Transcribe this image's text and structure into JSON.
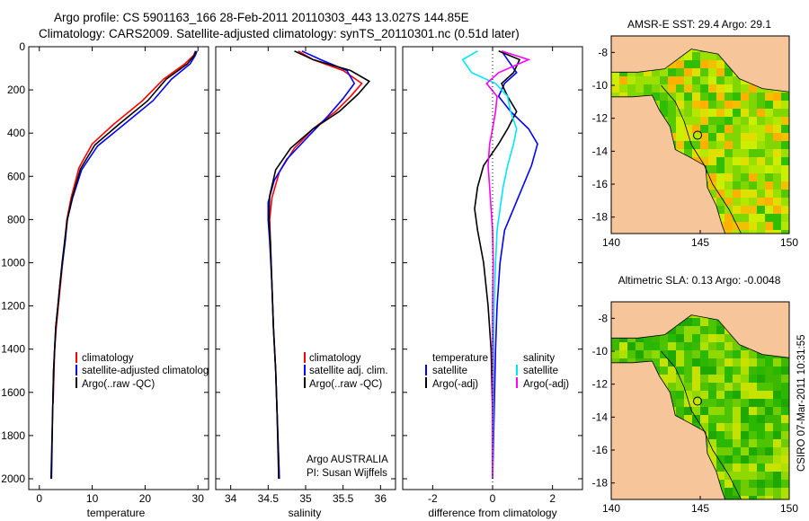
{
  "header": {
    "line1": "Argo profile: CS 5901163_166 28-Feb-2011 20110303_443 13.027S 144.85E",
    "line2": "Climatology: CARS2009. Satellite-adjusted climatology: synTS_20110301.nc (0.51d later)"
  },
  "footer": {
    "org": "Argo AUSTRALIA",
    "pi": "PI: Susan Wijffels",
    "stamp": "CSIRO 07-Mar-2011 10:31:55"
  },
  "colors": {
    "climatology": "#ff0000",
    "satellite": "#0000ff",
    "argo": "#000000",
    "sal_satellite": "#00e5ff",
    "sal_argo": "#ff00ff",
    "land": "#f6c59a",
    "sea_grid": "#000000"
  },
  "chart_data": [
    {
      "type": "line",
      "title": "",
      "xlabel": "temperature",
      "ylabel": "",
      "xlim": [
        -2,
        32
      ],
      "ylim": [
        2050,
        0
      ],
      "xticks": [
        0,
        10,
        20,
        30
      ],
      "yticks": [
        0,
        200,
        400,
        600,
        800,
        1000,
        1200,
        1400,
        1600,
        1800,
        2000
      ],
      "legend": [
        "climatology",
        "satellite-adjusted climatolog",
        "Argo(..raw -QC)"
      ],
      "series": [
        {
          "name": "climatology",
          "color": "#ff0000",
          "x": [
            29.5,
            29.2,
            27.5,
            23.5,
            19.5,
            14,
            10,
            7.5,
            6,
            5.2,
            4.8,
            4.4,
            4,
            3.6,
            3.2,
            2.9,
            2.6
          ],
          "y": [
            20,
            40,
            80,
            150,
            250,
            360,
            450,
            560,
            700,
            800,
            900,
            1000,
            1100,
            1200,
            1300,
            1400,
            1650
          ]
        },
        {
          "name": "satellite-adjusted climatology",
          "color": "#0000ff",
          "x": [
            29.8,
            29.5,
            28.5,
            25,
            21.5,
            16,
            11,
            8,
            6.3,
            5.3,
            4.9,
            4.4,
            3.9,
            3.5,
            3.1,
            2.7,
            2.5,
            2.2
          ],
          "y": [
            20,
            40,
            80,
            150,
            250,
            360,
            460,
            570,
            700,
            800,
            900,
            1000,
            1100,
            1200,
            1300,
            1500,
            1700,
            2000
          ]
        },
        {
          "name": "Argo(..raw -QC)",
          "color": "#000000",
          "x": [
            29.6,
            29.3,
            28,
            24,
            20.5,
            15,
            10.5,
            7.8,
            6.2,
            5.3,
            4.8,
            4.3,
            3.9,
            3.5,
            3.1,
            2.7,
            2.5,
            2.3
          ],
          "y": [
            20,
            40,
            80,
            150,
            250,
            360,
            455,
            565,
            700,
            800,
            900,
            1000,
            1100,
            1200,
            1300,
            1500,
            1700,
            2000
          ]
        }
      ]
    },
    {
      "type": "line",
      "title": "",
      "xlabel": "salinity",
      "ylabel": "",
      "xlim": [
        33.8,
        36.2
      ],
      "ylim": [
        2050,
        0
      ],
      "xticks": [
        34,
        34.5,
        35,
        35.5,
        36
      ],
      "legend": [
        "climatology",
        "satellite adj. clim.",
        "Argo(..raw -QC)"
      ],
      "series": [
        {
          "name": "climatology",
          "color": "#ff0000",
          "x": [
            34.9,
            35.1,
            35.5,
            35.75,
            35.6,
            35.4,
            35.1,
            34.85,
            34.65,
            34.55,
            34.52,
            34.53,
            34.55,
            34.57,
            34.6,
            34.62,
            34.65
          ],
          "y": [
            20,
            60,
            110,
            170,
            230,
            300,
            380,
            470,
            580,
            700,
            800,
            900,
            1100,
            1300,
            1500,
            1700,
            2000
          ]
        },
        {
          "name": "satellite adj. clim.",
          "color": "#0000ff",
          "x": [
            34.95,
            35.2,
            35.55,
            35.65,
            35.5,
            35.3,
            35.05,
            34.75,
            34.58,
            34.5,
            34.5,
            34.52,
            34.55,
            34.57,
            34.6,
            34.62,
            34.65
          ],
          "y": [
            20,
            60,
            110,
            170,
            240,
            320,
            410,
            520,
            620,
            720,
            800,
            900,
            1100,
            1300,
            1500,
            1700,
            2000
          ]
        },
        {
          "name": "Argo(..raw -QC)",
          "color": "#000000",
          "x": [
            34.85,
            35.1,
            35.6,
            35.85,
            35.7,
            35.45,
            35.1,
            34.8,
            34.6,
            34.52,
            34.51,
            34.53,
            34.55,
            34.57,
            34.6,
            34.62,
            34.64
          ],
          "y": [
            20,
            60,
            110,
            160,
            220,
            300,
            380,
            470,
            570,
            690,
            800,
            900,
            1100,
            1300,
            1500,
            1700,
            2000
          ]
        }
      ]
    },
    {
      "type": "line",
      "title": "",
      "xlabel": "difference from climatology",
      "ylabel": "",
      "xlim": [
        -3,
        3
      ],
      "ylim": [
        2050,
        0
      ],
      "xticks": [
        -2,
        0,
        2
      ],
      "legend_temperature": {
        "heading": "temperature",
        "items": [
          "satellite",
          "Argo(-adj)"
        ]
      },
      "legend_salinity": {
        "heading": "salinity",
        "items": [
          "satellite",
          "Argo(-adj)"
        ]
      },
      "series": [
        {
          "name": "temperature satellite",
          "color": "#0000ff",
          "x": [
            0.3,
            0.5,
            0.8,
            0.4,
            0.2,
            0.6,
            1.2,
            1.5,
            1.3,
            1.0,
            0.7,
            0.4,
            0.25,
            0.15,
            0.1,
            0.05,
            0.0
          ],
          "y": [
            20,
            60,
            120,
            170,
            230,
            300,
            380,
            450,
            550,
            650,
            750,
            850,
            1000,
            1200,
            1400,
            1700,
            2000
          ]
        },
        {
          "name": "temperature Argo(-adj)",
          "color": "#000000",
          "x": [
            0.2,
            0.9,
            0.7,
            0.3,
            0.5,
            0.8,
            0.5,
            0.2,
            -0.3,
            -0.5,
            -0.6,
            -0.5,
            -0.3,
            -0.15,
            -0.05,
            0.0,
            0.0
          ],
          "y": [
            20,
            60,
            120,
            170,
            230,
            300,
            380,
            450,
            550,
            650,
            750,
            850,
            1000,
            1200,
            1400,
            1700,
            2000
          ]
        },
        {
          "name": "salinity satellite",
          "color": "#00e5ff",
          "x": [
            -0.5,
            -1.0,
            -0.7,
            0.1,
            0.5,
            0.6,
            0.8,
            0.7,
            0.5,
            0.35,
            0.25,
            0.15,
            0.1,
            0.05,
            0.03,
            0.02,
            0.0
          ],
          "y": [
            20,
            60,
            120,
            170,
            230,
            300,
            380,
            450,
            550,
            650,
            750,
            850,
            1000,
            1200,
            1400,
            1700,
            2000
          ]
        },
        {
          "name": "salinity Argo(-adj)",
          "color": "#ff00ff",
          "x": [
            0.3,
            1.2,
            0.2,
            -0.2,
            0.15,
            0.1,
            0.0,
            -0.1,
            -0.15,
            -0.1,
            -0.05,
            0.0,
            0.02,
            0.0,
            0.0,
            0.0,
            0.0
          ],
          "y": [
            20,
            60,
            120,
            170,
            230,
            300,
            380,
            450,
            550,
            650,
            750,
            850,
            1000,
            1200,
            1400,
            1700,
            2000
          ]
        }
      ]
    },
    {
      "type": "heatmap",
      "title": "AMSR-E SST: 29.4 Argo: 29.1",
      "xlim": [
        140,
        150
      ],
      "ylim": [
        -19,
        -7
      ],
      "xticks": [
        140,
        145,
        150
      ],
      "yticks": [
        -8,
        -10,
        -12,
        -14,
        -16,
        -18
      ],
      "marker": {
        "lon": 144.85,
        "lat": -13.027
      }
    },
    {
      "type": "heatmap",
      "title": "Altimetric SLA: 0.13 Argo: -0.0048",
      "xlim": [
        140,
        150
      ],
      "ylim": [
        -19,
        -7
      ],
      "xticks": [
        140,
        145,
        150
      ],
      "yticks": [
        -8,
        -10,
        -12,
        -14,
        -16,
        -18
      ],
      "marker": {
        "lon": 144.85,
        "lat": -13.027
      }
    }
  ]
}
